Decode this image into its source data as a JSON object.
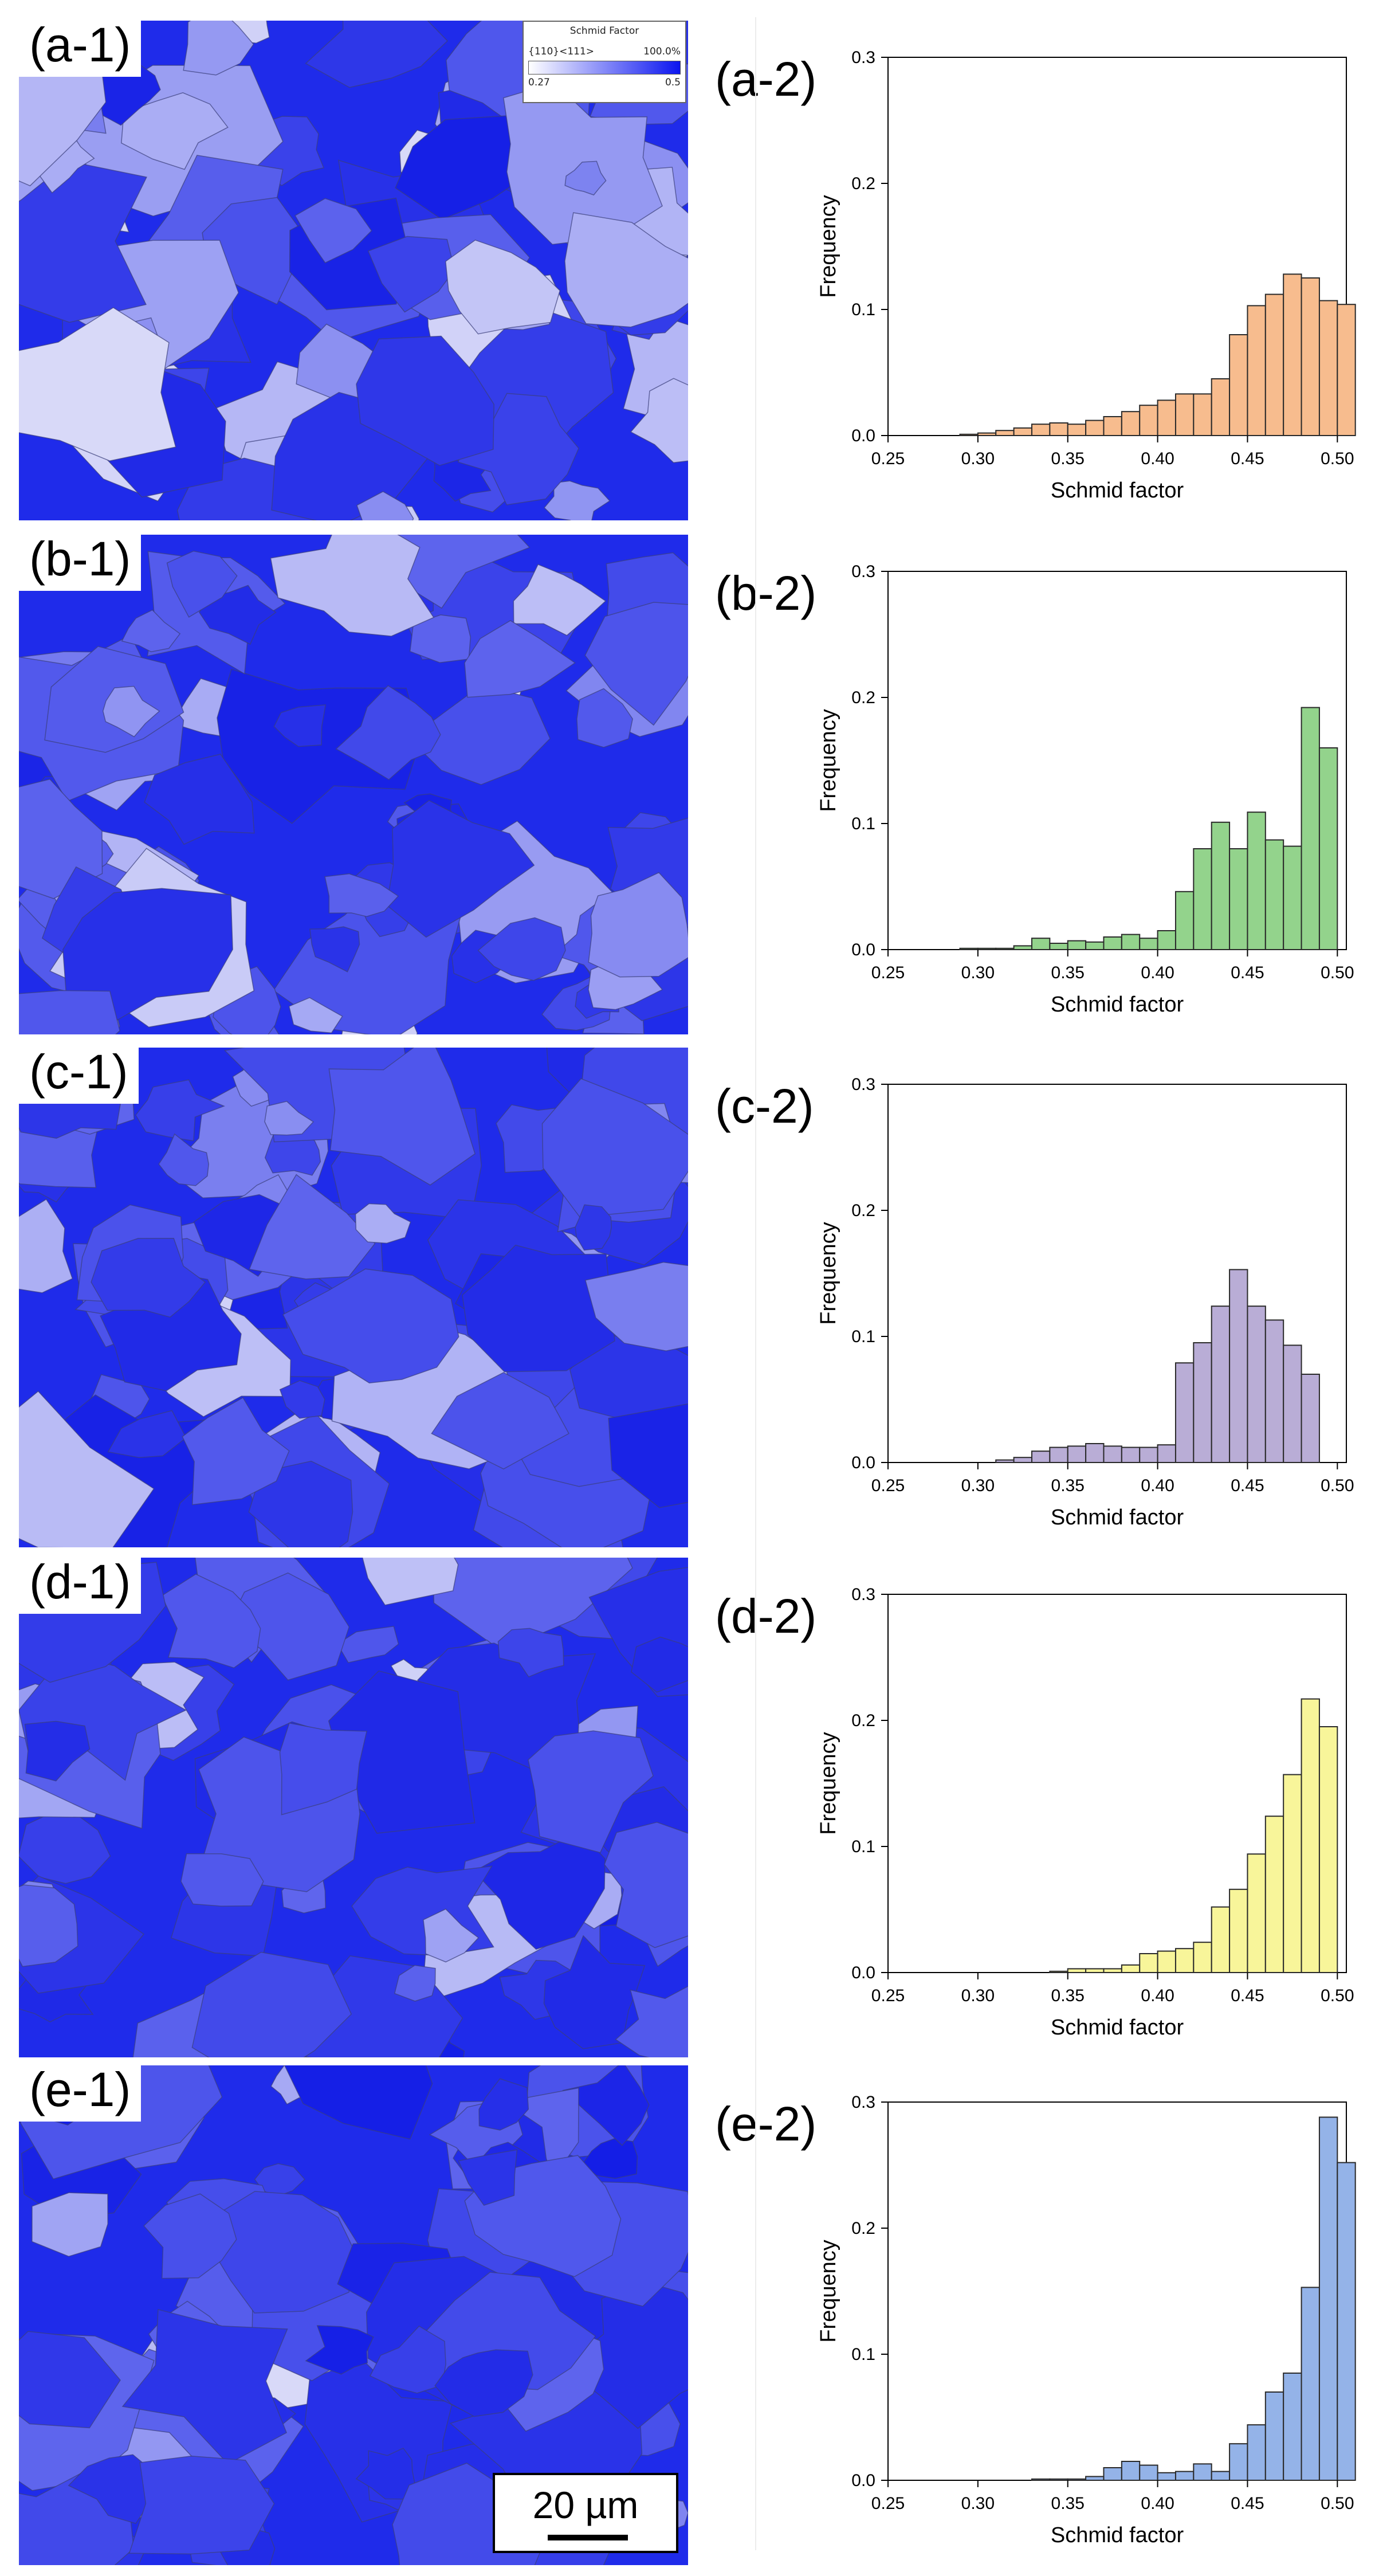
{
  "legend": {
    "title": "Schmid Factor",
    "system": "{110}<111>",
    "percent": "100.0%",
    "min": "0.27",
    "max": "0.5"
  },
  "scale_bar": {
    "label": "20 µm"
  },
  "colors": {
    "map_blue": "#1f2bea"
  },
  "panels": [
    {
      "map_label": "(a-1)",
      "chart_label": "(a-2)",
      "color": "#f7bc8e"
    },
    {
      "map_label": "(b-1)",
      "chart_label": "(b-2)",
      "color": "#93d38c"
    },
    {
      "map_label": "(c-1)",
      "chart_label": "(c-2)",
      "color": "#b9add6"
    },
    {
      "map_label": "(d-1)",
      "chart_label": "(d-2)",
      "color": "#f8f59a"
    },
    {
      "map_label": "(e-1)",
      "chart_label": "(e-2)",
      "color": "#94b3e8"
    }
  ],
  "chart_data": [
    {
      "type": "bar",
      "xlabel": "Schmid factor",
      "ylabel": "Frequency",
      "xlim": [
        0.25,
        0.505
      ],
      "ylim": [
        0,
        0.3
      ],
      "xticks": [
        "0.25",
        "0.30",
        "0.35",
        "0.40",
        "0.45",
        "0.50"
      ],
      "yticks": [
        "0.0",
        "0.1",
        "0.2",
        "0.3"
      ],
      "bin_start": 0.29,
      "bin_width": 0.01,
      "values": [
        0.001,
        0.002,
        0.004,
        0.006,
        0.009,
        0.01,
        0.009,
        0.012,
        0.015,
        0.019,
        0.024,
        0.028,
        0.033,
        0.033,
        0.045,
        0.08,
        0.103,
        0.112,
        0.128,
        0.125,
        0.107,
        0.104
      ]
    },
    {
      "type": "bar",
      "xlabel": "Schmid factor",
      "ylabel": "Frequency",
      "xlim": [
        0.25,
        0.505
      ],
      "ylim": [
        0,
        0.3
      ],
      "xticks": [
        "0.25",
        "0.30",
        "0.35",
        "0.40",
        "0.45",
        "0.50"
      ],
      "yticks": [
        "0.0",
        "0.1",
        "0.2",
        "0.3"
      ],
      "bin_start": 0.29,
      "bin_width": 0.01,
      "values": [
        0.001,
        0.001,
        0.001,
        0.003,
        0.009,
        0.005,
        0.007,
        0.006,
        0.01,
        0.012,
        0.009,
        0.015,
        0.046,
        0.08,
        0.101,
        0.08,
        0.109,
        0.087,
        0.082,
        0.192,
        0.16
      ]
    },
    {
      "type": "bar",
      "xlabel": "Schmid factor",
      "ylabel": "Frequency",
      "xlim": [
        0.25,
        0.505
      ],
      "ylim": [
        0,
        0.3
      ],
      "xticks": [
        "0.25",
        "0.30",
        "0.35",
        "0.40",
        "0.45",
        "0.50"
      ],
      "yticks": [
        "0.0",
        "0.1",
        "0.2",
        "0.3"
      ],
      "bin_start": 0.31,
      "bin_width": 0.01,
      "values": [
        0.002,
        0.004,
        0.009,
        0.012,
        0.013,
        0.015,
        0.013,
        0.012,
        0.012,
        0.014,
        0.079,
        0.095,
        0.124,
        0.153,
        0.124,
        0.113,
        0.093,
        0.07
      ]
    },
    {
      "type": "bar",
      "xlabel": "Schmid factor",
      "ylabel": "Frequency",
      "xlim": [
        0.25,
        0.505
      ],
      "ylim": [
        0,
        0.3
      ],
      "xticks": [
        "0.25",
        "0.30",
        "0.35",
        "0.40",
        "0.45",
        "0.50"
      ],
      "yticks": [
        "0.0",
        "0.1",
        "0.2",
        "0.3"
      ],
      "bin_start": 0.34,
      "bin_width": 0.01,
      "values": [
        0.001,
        0.003,
        0.003,
        0.003,
        0.006,
        0.015,
        0.017,
        0.019,
        0.024,
        0.052,
        0.066,
        0.094,
        0.124,
        0.157,
        0.217,
        0.195
      ]
    },
    {
      "type": "bar",
      "xlabel": "Schmid factor",
      "ylabel": "Frequency",
      "xlim": [
        0.25,
        0.505
      ],
      "ylim": [
        0,
        0.3
      ],
      "xticks": [
        "0.25",
        "0.30",
        "0.35",
        "0.40",
        "0.45",
        "0.50"
      ],
      "yticks": [
        "0.0",
        "0.1",
        "0.2",
        "0.3"
      ],
      "bin_start": 0.33,
      "bin_width": 0.01,
      "values": [
        0.001,
        0.001,
        0.001,
        0.003,
        0.01,
        0.015,
        0.012,
        0.006,
        0.007,
        0.013,
        0.007,
        0.029,
        0.044,
        0.07,
        0.085,
        0.153,
        0.288,
        0.252
      ]
    }
  ]
}
